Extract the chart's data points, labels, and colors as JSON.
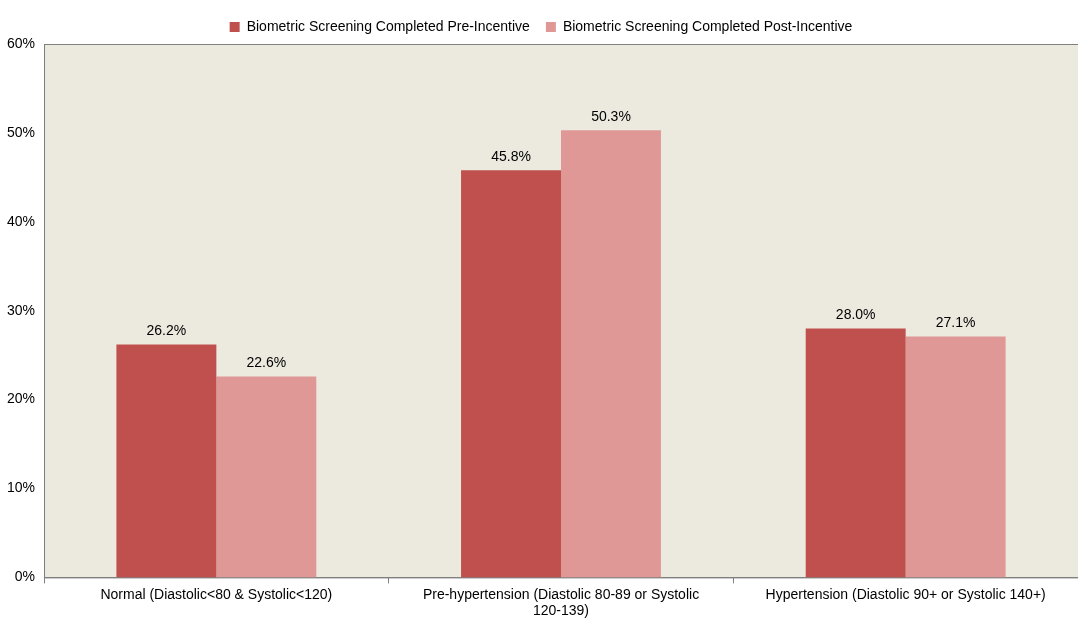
{
  "chart_data": {
    "type": "bar",
    "categories": [
      "Normal (Diastolic<80 & Systolic<120)",
      "Pre-hypertension (Diastolic 80-89 or Systolic 120-139)",
      "Hypertension (Diastolic 90+ or Systolic 140+)"
    ],
    "series": [
      {
        "name": "Biometric Screening Completed Pre-Incentive",
        "color": "#c0504d",
        "values": [
          26.2,
          45.8,
          28.0
        ],
        "value_labels": [
          "26.2%",
          "45.8%",
          "28.0%"
        ]
      },
      {
        "name": "Biometric Screening Completed Post-Incentive",
        "color": "#e09896",
        "values": [
          22.6,
          50.3,
          27.1
        ],
        "value_labels": [
          "22.6%",
          "50.3%",
          "27.1%"
        ]
      }
    ],
    "ylim": [
      0,
      60
    ],
    "yticks": [
      {
        "value": 0,
        "label": "0%"
      },
      {
        "value": 10,
        "label": "10%"
      },
      {
        "value": 20,
        "label": "20%"
      },
      {
        "value": 30,
        "label": "30%"
      },
      {
        "value": 40,
        "label": "40%"
      },
      {
        "value": 50,
        "label": "50%"
      },
      {
        "value": 60,
        "label": "60%"
      }
    ],
    "grid": false,
    "legend": "top"
  }
}
